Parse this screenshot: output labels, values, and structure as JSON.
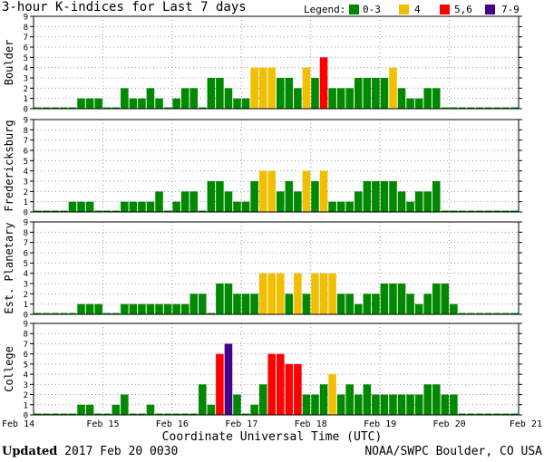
{
  "chart_data": {
    "type": "bar",
    "title": "3-hour K-indices for Last 7 days",
    "xlabel": "Coordinate Universal Time (UTC)",
    "ylim": [
      0,
      9
    ],
    "yticks": [
      0,
      1,
      2,
      3,
      4,
      5,
      6,
      7,
      8,
      9
    ],
    "grid": true,
    "bins_per_day": 8,
    "xticks": [
      "Feb 14",
      "Feb 15",
      "Feb 16",
      "Feb 17",
      "Feb 18",
      "Feb 19",
      "Feb 20",
      "Feb 21"
    ],
    "legend": {
      "title": "Legend:",
      "items": [
        {
          "label": "0-3",
          "color": "#008800"
        },
        {
          "label": "4",
          "color": "#f0c000"
        },
        {
          "label": "5,6",
          "color": "#ff0000"
        },
        {
          "label": "7-9",
          "color": "#440088"
        }
      ]
    },
    "series": [
      {
        "name": "Boulder",
        "values": [
          0,
          0,
          0,
          0,
          0,
          1,
          1,
          1,
          0,
          0,
          2,
          1,
          1,
          2,
          1,
          0,
          1,
          2,
          2,
          0,
          3,
          3,
          2,
          1,
          1,
          4,
          4,
          4,
          3,
          3,
          2,
          4,
          3,
          5,
          2,
          2,
          2,
          3,
          3,
          3,
          3,
          4,
          2,
          1,
          1,
          2,
          2,
          0,
          0,
          0,
          0,
          0,
          0,
          0,
          0,
          0
        ]
      },
      {
        "name": "Fredericksburg",
        "values": [
          0,
          0,
          0,
          0,
          1,
          1,
          1,
          0,
          0,
          0,
          1,
          1,
          1,
          1,
          2,
          0,
          1,
          2,
          2,
          0,
          3,
          3,
          2,
          1,
          1,
          3,
          4,
          4,
          2,
          3,
          2,
          4,
          3,
          4,
          1,
          1,
          1,
          2,
          3,
          3,
          3,
          3,
          2,
          1,
          2,
          2,
          3,
          0,
          0,
          0,
          0,
          0,
          0,
          0,
          0,
          0
        ]
      },
      {
        "name": "Est. Planetary",
        "values": [
          0,
          0,
          0,
          0,
          0,
          1,
          1,
          1,
          0,
          0,
          1,
          1,
          1,
          1,
          1,
          1,
          1,
          1,
          2,
          2,
          0,
          3,
          3,
          2,
          2,
          2,
          4,
          4,
          4,
          2,
          4,
          2,
          4,
          4,
          4,
          2,
          2,
          1,
          2,
          2,
          3,
          3,
          3,
          2,
          1,
          2,
          3,
          3,
          1,
          0,
          0,
          0,
          0,
          0,
          0,
          0
        ]
      },
      {
        "name": "College",
        "values": [
          0,
          0,
          0,
          0,
          0,
          1,
          1,
          0,
          0,
          1,
          2,
          0,
          0,
          1,
          0,
          0,
          0,
          0,
          0,
          3,
          1,
          6,
          7,
          2,
          0,
          1,
          3,
          6,
          6,
          5,
          5,
          2,
          2,
          3,
          4,
          2,
          3,
          2,
          3,
          2,
          2,
          2,
          2,
          2,
          2,
          3,
          3,
          2,
          2,
          0,
          0,
          0,
          0,
          0,
          0,
          0
        ]
      }
    ]
  },
  "footer": {
    "updated_label": "Updated",
    "updated_value": " 2017 Feb 20 0030",
    "credit": "NOAA/SWPC Boulder, CO USA"
  }
}
